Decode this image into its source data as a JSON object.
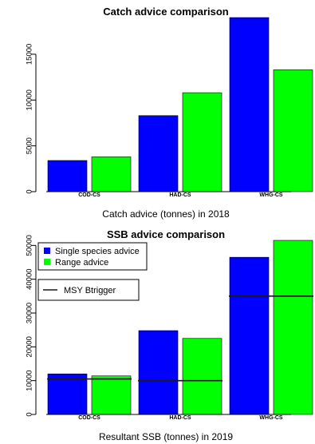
{
  "chart_data": [
    {
      "type": "bar",
      "title": "Catch advice comparison",
      "xlabel": "Catch advice (tonnes) in 2018",
      "ylabel": "",
      "categories": [
        "COD-CS",
        "HAD-CS",
        "WHG-CS"
      ],
      "series": [
        {
          "name": "Single species advice",
          "color": "#0000ff",
          "values": [
            3400,
            8300,
            19000
          ]
        },
        {
          "name": "Range advice",
          "color": "#00ff00",
          "values": [
            3800,
            10800,
            13300
          ]
        }
      ],
      "ylim": [
        0,
        19000
      ],
      "yticks": [
        0,
        5000,
        10000,
        15000
      ],
      "ytick_labels": [
        "0",
        "5000",
        "10000",
        "15000"
      ],
      "grid": false
    },
    {
      "type": "bar",
      "title": "SSB advice comparison",
      "xlabel": "Resultant SSB (tonnes) in 2019",
      "ylabel": "",
      "categories": [
        "COD-CS",
        "HAD-CS",
        "WHG-CS"
      ],
      "series": [
        {
          "name": "Single species advice",
          "color": "#0000ff",
          "values": [
            12000,
            24800,
            46500
          ]
        },
        {
          "name": "Range advice",
          "color": "#00ff00",
          "values": [
            11400,
            22500,
            51500
          ]
        }
      ],
      "reference_line": {
        "name": "MSY Btrigger",
        "color": "#1a1a1a",
        "values": [
          10500,
          10000,
          35000
        ]
      },
      "ylim": [
        0,
        51500
      ],
      "yticks": [
        0,
        10000,
        20000,
        30000,
        40000,
        50000
      ],
      "ytick_labels": [
        "0",
        "10000",
        "20000",
        "30000",
        "40000",
        "50000"
      ],
      "legend": {
        "position": "top-left",
        "entries": [
          "Single species advice",
          "Range advice"
        ],
        "line_entry": "MSY Btrigger"
      },
      "grid": false
    }
  ]
}
